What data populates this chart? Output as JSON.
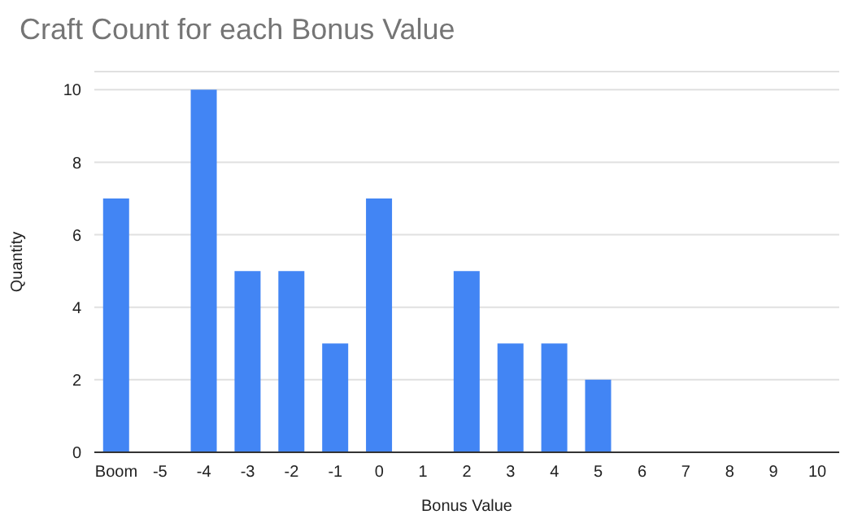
{
  "chart_data": {
    "type": "bar",
    "title": "Craft Count for each Bonus Value",
    "xlabel": "Bonus Value",
    "ylabel": "Quantity",
    "categories": [
      "Boom",
      "-5",
      "-4",
      "-3",
      "-2",
      "-1",
      "0",
      "1",
      "2",
      "3",
      "4",
      "5",
      "6",
      "7",
      "8",
      "9",
      "10"
    ],
    "values": [
      7,
      0,
      10,
      5,
      5,
      3,
      7,
      0,
      5,
      3,
      3,
      2,
      0,
      0,
      0,
      0,
      0
    ],
    "color": "#4285f4",
    "ylim": [
      0,
      10.5
    ],
    "yticks": [
      0,
      2,
      4,
      6,
      8,
      10
    ],
    "grid": "y"
  }
}
